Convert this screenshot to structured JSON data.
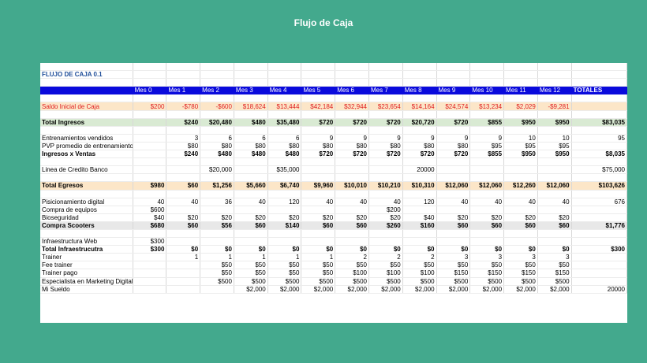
{
  "page": {
    "title": "Flujo de Caja"
  },
  "sheet": {
    "name": "FLUJO DE CAJA 0.1",
    "columns": [
      "",
      "Mes 0",
      "Mes 1",
      "Mes 2",
      "Mes 3",
      "Mes 4",
      "Mes 5",
      "Mes 6",
      "Mes 7",
      "Mes 8",
      "Mes 9",
      "Mes 10",
      "Mes 11",
      "Mes 12",
      "TOTALES"
    ],
    "rows": [
      {
        "label": "Saldo Inicial de Caja",
        "values": [
          "$200",
          "-$780",
          "-$600",
          "$18,624",
          "$13,444",
          "$42,184",
          "$32,944",
          "$23,654",
          "$14,164",
          "$24,574",
          "$13,234",
          "$2,029",
          "-$9,281",
          ""
        ],
        "style": "orange red"
      },
      {
        "label": "",
        "values": [
          "",
          "",
          "",
          "",
          "",
          "",
          "",
          "",
          "",
          "",
          "",
          "",
          "",
          ""
        ],
        "style": "blank"
      },
      {
        "label": "Total Ingresos",
        "values": [
          "",
          "$240",
          "$20,480",
          "$480",
          "$35,480",
          "$720",
          "$720",
          "$720",
          "$20,720",
          "$720",
          "$855",
          "$950",
          "$950",
          "$83,035"
        ],
        "style": "green bold"
      },
      {
        "label": "",
        "values": [
          "",
          "",
          "",
          "",
          "",
          "",
          "",
          "",
          "",
          "",
          "",
          "",
          "",
          ""
        ],
        "style": "blank"
      },
      {
        "label": "Entrenamientos vendidos",
        "values": [
          "",
          "3",
          "6",
          "6",
          "6",
          "9",
          "9",
          "9",
          "9",
          "9",
          "9",
          "10",
          "10",
          "95"
        ],
        "style": ""
      },
      {
        "label": "PVP promedio de entrenamiento",
        "values": [
          "",
          "$80",
          "$80",
          "$80",
          "$80",
          "$80",
          "$80",
          "$80",
          "$80",
          "$80",
          "$95",
          "$95",
          "$95",
          ""
        ],
        "style": ""
      },
      {
        "label": "Ingresos x Ventas",
        "values": [
          "",
          "$240",
          "$480",
          "$480",
          "$480",
          "$720",
          "$720",
          "$720",
          "$720",
          "$720",
          "$855",
          "$950",
          "$950",
          "$8,035"
        ],
        "style": "bold"
      },
      {
        "label": "",
        "values": [
          "",
          "",
          "",
          "",
          "",
          "",
          "",
          "",
          "",
          "",
          "",
          "",
          "",
          ""
        ],
        "style": "blank"
      },
      {
        "label": "Linea de Credito Banco",
        "values": [
          "",
          "",
          "$20,000",
          "",
          "$35,000",
          "",
          "",
          "",
          "20000",
          "",
          "",
          "",
          "",
          "$75,000"
        ],
        "style": ""
      },
      {
        "label": "",
        "values": [
          "",
          "",
          "",
          "",
          "",
          "",
          "",
          "",
          "",
          "",
          "",
          "",
          "",
          ""
        ],
        "style": "blank"
      },
      {
        "label": "Total Egresos",
        "values": [
          "$980",
          "$60",
          "$1,256",
          "$5,660",
          "$6,740",
          "$9,960",
          "$10,010",
          "$10,210",
          "$10,310",
          "$12,060",
          "$12,060",
          "$12,260",
          "$12,060",
          "$103,626"
        ],
        "style": "orange bold"
      },
      {
        "label": "",
        "values": [
          "",
          "",
          "",
          "",
          "",
          "",
          "",
          "",
          "",
          "",
          "",
          "",
          "",
          ""
        ],
        "style": "blank"
      },
      {
        "label": "Pisicionamiento digital",
        "values": [
          "40",
          "40",
          "36",
          "40",
          "120",
          "40",
          "40",
          "40",
          "120",
          "40",
          "40",
          "40",
          "40",
          "676"
        ],
        "style": ""
      },
      {
        "label": "Compra de equipos",
        "values": [
          "$600",
          "",
          "",
          "",
          "",
          "",
          "",
          "$200",
          "",
          "",
          "",
          "",
          "",
          ""
        ],
        "style": ""
      },
      {
        "label": "Bioseguridad",
        "values": [
          "$40",
          "$20",
          "$20",
          "$20",
          "$20",
          "$20",
          "$20",
          "$20",
          "$40",
          "$20",
          "$20",
          "$20",
          "$20",
          ""
        ],
        "style": ""
      },
      {
        "label": "Compra Scooters",
        "values": [
          "$680",
          "$60",
          "$56",
          "$60",
          "$140",
          "$60",
          "$60",
          "$260",
          "$160",
          "$60",
          "$60",
          "$60",
          "$60",
          "$1,776"
        ],
        "style": "gray bold"
      },
      {
        "label": "",
        "values": [
          "",
          "",
          "",
          "",
          "",
          "",
          "",
          "",
          "",
          "",
          "",
          "",
          "",
          ""
        ],
        "style": "blank"
      },
      {
        "label": "Infraestructura Web",
        "values": [
          "$300",
          "",
          "",
          "",
          "",
          "",
          "",
          "",
          "",
          "",
          "",
          "",
          "",
          ""
        ],
        "style": ""
      },
      {
        "label": "Total Infraestrucutra",
        "values": [
          "$300",
          "$0",
          "$0",
          "$0",
          "$0",
          "$0",
          "$0",
          "$0",
          "$0",
          "$0",
          "$0",
          "$0",
          "$0",
          "$300"
        ],
        "style": "bold"
      },
      {
        "label": "Trainer",
        "values": [
          "",
          "1",
          "1",
          "1",
          "1",
          "1",
          "2",
          "2",
          "2",
          "3",
          "3",
          "3",
          "3",
          ""
        ],
        "style": ""
      },
      {
        "label": "Fee trainer",
        "values": [
          "",
          "",
          "$50",
          "$50",
          "$50",
          "$50",
          "$50",
          "$50",
          "$50",
          "$50",
          "$50",
          "$50",
          "$50",
          ""
        ],
        "style": ""
      },
      {
        "label": "Trainer pago",
        "values": [
          "",
          "",
          "$50",
          "$50",
          "$50",
          "$50",
          "$100",
          "$100",
          "$100",
          "$150",
          "$150",
          "$150",
          "$150",
          ""
        ],
        "style": ""
      },
      {
        "label": "Especialista en Marketing Digital",
        "values": [
          "",
          "",
          "$500",
          "$500",
          "$500",
          "$500",
          "$500",
          "$500",
          "$500",
          "$500",
          "$500",
          "$500",
          "$500",
          ""
        ],
        "style": ""
      },
      {
        "label": "Mi Sueldo",
        "values": [
          "",
          "",
          "",
          "$2,000",
          "$2,000",
          "$2,000",
          "$2,000",
          "$2,000",
          "$2,000",
          "$2,000",
          "$2,000",
          "$2,000",
          "$2,000",
          "20000"
        ],
        "style": ""
      }
    ]
  }
}
